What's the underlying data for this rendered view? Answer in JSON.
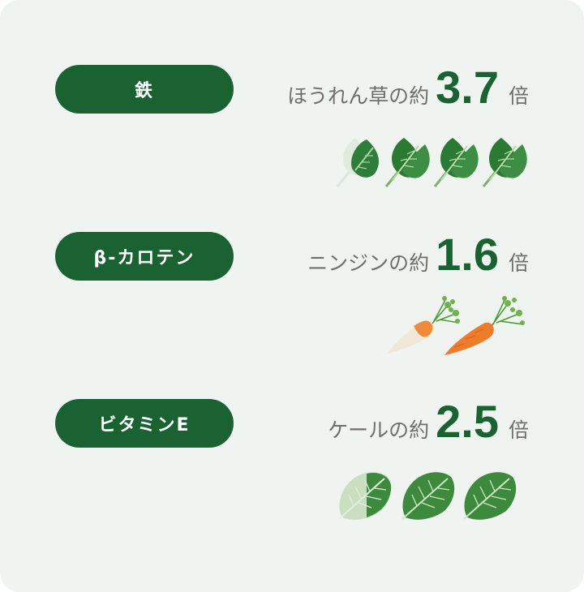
{
  "card": {
    "background": "#f0f4f0",
    "accent": "#1b6232"
  },
  "rows": [
    {
      "pill_label": "鉄",
      "comparison_label": "ほうれん草の約",
      "value": "3.7",
      "unit": "倍",
      "icon": "spinach-icon",
      "icon_count": 4,
      "icon_fill_fraction": 0.925
    },
    {
      "pill_label": "β-カロテン",
      "comparison_label": "ニンジンの約",
      "value": "1.6",
      "unit": "倍",
      "icon": "carrot-icon",
      "icon_count": 2,
      "icon_fill_fraction": 0.8
    },
    {
      "pill_label": "ビタミンE",
      "comparison_label": "ケールの約",
      "value": "2.5",
      "unit": "倍",
      "icon": "kale-icon",
      "icon_count": 3,
      "icon_fill_fraction": 0.833
    }
  ]
}
